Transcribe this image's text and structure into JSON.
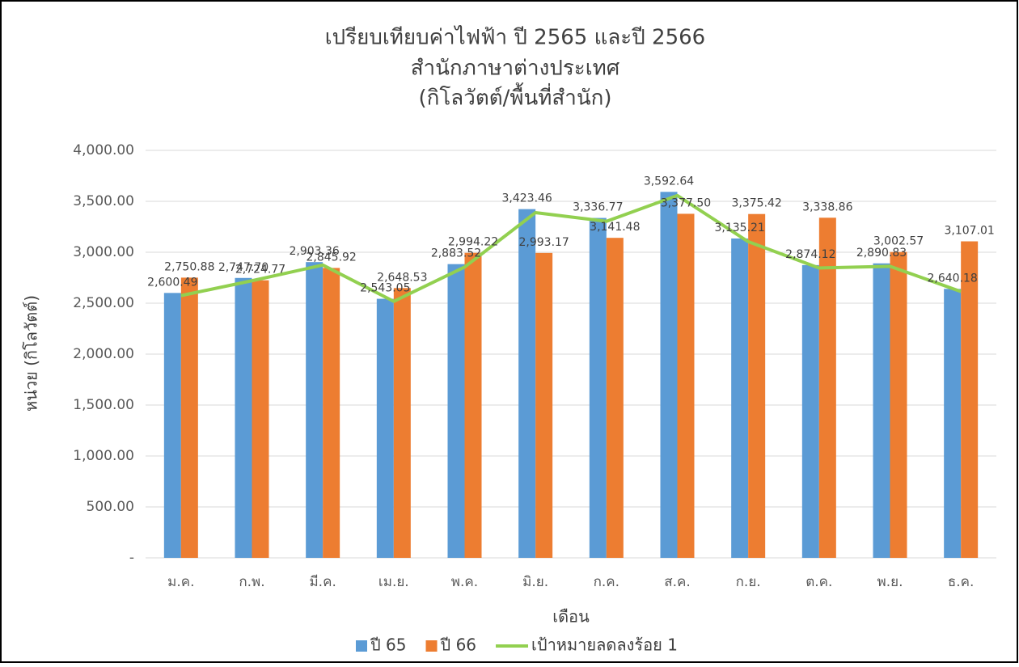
{
  "chart_data": {
    "type": "bar",
    "title": [
      "เปรียบเทียบค่าไฟฟ้า ปี 2565 และปี 2566",
      "สำนักภาษาต่างประเทศ",
      "(กิโลวัตต์/พื้นที่สำนัก)"
    ],
    "x_label": "เดือน",
    "y_label": "หน่วย (กิโลวัตต์)",
    "categories": [
      "ม.ค.",
      "ก.พ.",
      "มี.ค.",
      "เม.ย.",
      "พ.ค.",
      "มิ.ย.",
      "ก.ค.",
      "ส.ค.",
      "ก.ย.",
      "ต.ค.",
      "พ.ย.",
      "ธ.ค."
    ],
    "series": [
      {
        "name": "ปี 65",
        "type": "bar",
        "color": "#5b9bd5",
        "values": [
          2600.49,
          2747.7,
          2903.36,
          2543.05,
          2883.52,
          3423.46,
          3336.77,
          3592.64,
          3135.21,
          2874.12,
          2890.83,
          2640.18
        ],
        "value_labels": [
          "2,600.49",
          "2,747.70",
          "2,903.36",
          "2,543.05",
          "2,883.52",
          "3,423.46",
          "3,336.77",
          "3,592.64",
          "3,135.21",
          "2,874.12",
          "2,890.83",
          "2,640.18"
        ]
      },
      {
        "name": "ปี 66",
        "type": "bar",
        "color": "#ed7d31",
        "values": [
          2750.88,
          2724.77,
          2845.92,
          2648.53,
          2994.22,
          2993.17,
          3141.48,
          3377.5,
          3375.42,
          3338.86,
          3002.57,
          3107.01
        ],
        "value_labels": [
          "2,750.88",
          "2,724.77",
          "2,845.92",
          "2,648.53",
          "2,994.22",
          "2,993.17",
          "3,141.48",
          "3,377.50",
          "3,375.42",
          "3,338.86",
          "3,002.57",
          "3,107.01"
        ]
      },
      {
        "name": "เป้าหมายลดลงร้อย 1",
        "type": "line",
        "color": "#92d050",
        "values": [
          2574.49,
          2720.22,
          2874.33,
          2517.62,
          2854.68,
          3389.23,
          3303.4,
          3556.71,
          3103.86,
          2845.38,
          2861.92,
          2613.78
        ]
      }
    ],
    "ylim": [
      0,
      4000
    ],
    "yticks": [
      {
        "value": 0,
        "label": "-"
      },
      {
        "value": 500,
        "label": "500.00"
      },
      {
        "value": 1000,
        "label": "1,000.00"
      },
      {
        "value": 1500,
        "label": "1,500.00"
      },
      {
        "value": 2000,
        "label": "2,000.00"
      },
      {
        "value": 2500,
        "label": "2,500.00"
      },
      {
        "value": 3000,
        "label": "3,000.00"
      },
      {
        "value": 3500,
        "label": "3,500.00"
      },
      {
        "value": 4000,
        "label": "4,000.00"
      }
    ],
    "grid": true,
    "legend": "bottom"
  }
}
